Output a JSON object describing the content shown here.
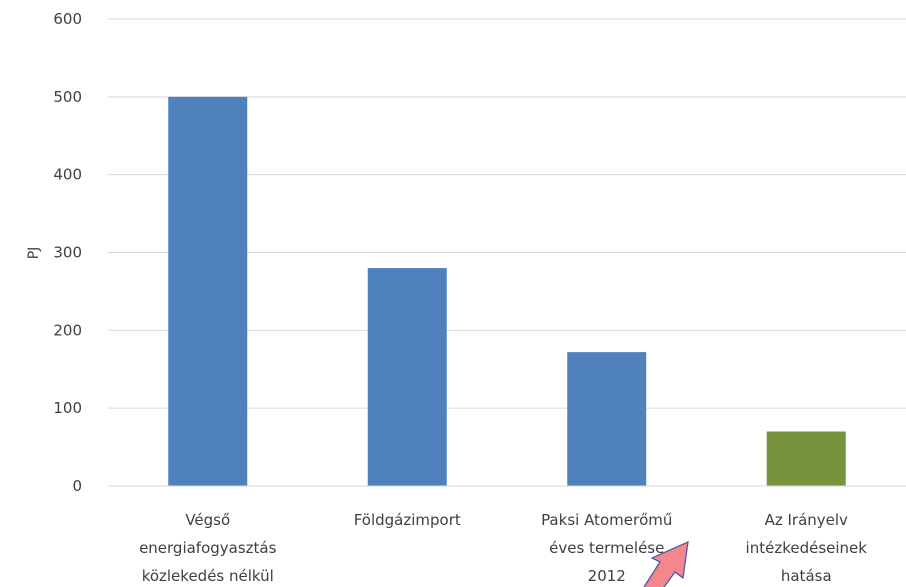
{
  "chart_data": {
    "type": "bar",
    "title": "",
    "xlabel": "",
    "ylabel": "PJ",
    "ylim": [
      0,
      600
    ],
    "yticks": [
      0,
      100,
      200,
      300,
      400,
      500,
      600
    ],
    "grid": true,
    "categories": [
      [
        "Végső",
        "energiafogyasztás",
        "közlekedés nélkül"
      ],
      [
        "Földgázimport"
      ],
      [
        "Paksi Atomerőmű",
        "éves termelése",
        "2012"
      ],
      [
        "Az Irányelv",
        "intézkedéseinek",
        "hatása"
      ]
    ],
    "values": [
      500,
      280,
      172,
      70
    ],
    "colors": [
      "#4f81bd",
      "#4f81bd",
      "#4f81bd",
      "#77933c"
    ],
    "annotation": {
      "type": "arrow",
      "points_to": "Az Irányelv intézkedéseinek hatása",
      "color": "#f4868c"
    }
  }
}
